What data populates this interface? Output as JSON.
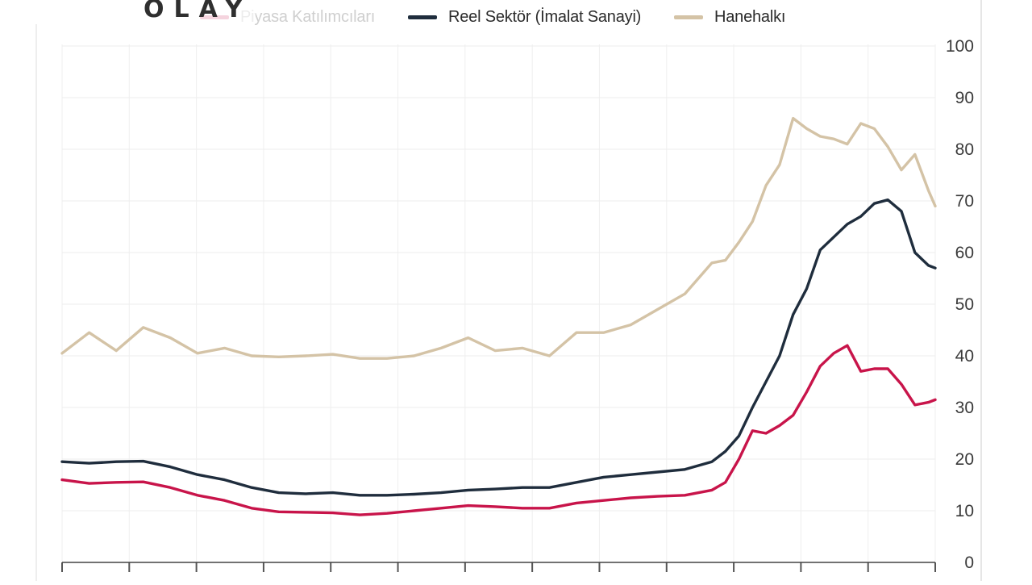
{
  "brand": {
    "logo_text": "OLAY"
  },
  "legend": [
    {
      "label": "Piyasa Katılımcıları",
      "color": "#c8144a"
    },
    {
      "label": "Reel Sektör (İmalat Sanayi)",
      "color": "#1f2d3d"
    },
    {
      "label": "Hanehalkı",
      "color": "#d4c3a6"
    }
  ],
  "chart_data": {
    "type": "line",
    "title": "",
    "xlabel": "",
    "ylabel": "",
    "ylim": [
      0,
      100
    ],
    "y_ticks": [
      0,
      10,
      20,
      30,
      40,
      50,
      60,
      70,
      80,
      90,
      100
    ],
    "y_axis_side": "right",
    "grid": true,
    "legend_position": "top",
    "x_index_range": [
      0,
      129
    ],
    "series": [
      {
        "name": "Piyasa Katılımcıları",
        "color": "#c8144a",
        "x": [
          0,
          4,
          8,
          12,
          16,
          20,
          24,
          28,
          32,
          36,
          40,
          44,
          48,
          52,
          56,
          60,
          64,
          68,
          72,
          76,
          80,
          84,
          88,
          92,
          96,
          98,
          100,
          102,
          104,
          106,
          108,
          110,
          112,
          114,
          116,
          118,
          120,
          122,
          124,
          126,
          128,
          129
        ],
        "values": [
          16,
          15.3,
          15.5,
          15.6,
          14.5,
          13,
          12,
          10.5,
          9.8,
          9.7,
          9.6,
          9.2,
          9.5,
          10,
          10.5,
          11,
          10.8,
          10.5,
          10.5,
          11.5,
          12,
          12.5,
          12.8,
          13,
          14,
          15.5,
          20,
          25.5,
          25,
          26.5,
          28.5,
          33,
          38,
          40.5,
          42,
          37,
          37.5,
          37.5,
          34.5,
          30.5,
          31,
          31.5
        ]
      },
      {
        "name": "Reel Sektör (İmalat Sanayi)",
        "color": "#1f2d3d",
        "x": [
          0,
          4,
          8,
          12,
          16,
          20,
          24,
          28,
          32,
          36,
          40,
          44,
          48,
          52,
          56,
          60,
          64,
          68,
          72,
          76,
          80,
          84,
          88,
          92,
          96,
          98,
          100,
          102,
          104,
          106,
          108,
          110,
          112,
          114,
          116,
          118,
          120,
          122,
          124,
          126,
          128,
          129
        ],
        "values": [
          19.5,
          19.2,
          19.5,
          19.6,
          18.5,
          17,
          16,
          14.5,
          13.5,
          13.3,
          13.5,
          13,
          13,
          13.2,
          13.5,
          14,
          14.2,
          14.5,
          14.5,
          15.5,
          16.5,
          17,
          17.5,
          18,
          19.5,
          21.5,
          24.5,
          30,
          35,
          40,
          48,
          53,
          60.5,
          63,
          65.5,
          67,
          69.5,
          70.2,
          68,
          60,
          57.5,
          57
        ]
      },
      {
        "name": "Hanehalkı",
        "color": "#d4c3a6",
        "x": [
          0,
          4,
          8,
          12,
          16,
          20,
          24,
          28,
          32,
          36,
          40,
          44,
          48,
          52,
          56,
          60,
          64,
          68,
          72,
          76,
          80,
          84,
          88,
          92,
          96,
          98,
          100,
          102,
          104,
          106,
          108,
          110,
          112,
          114,
          116,
          118,
          120,
          122,
          124,
          126,
          128,
          129
        ],
        "values": [
          40.5,
          44.5,
          41,
          45.5,
          43.5,
          40.5,
          41.5,
          40,
          39.8,
          40,
          40.3,
          39.5,
          39.5,
          40,
          41.5,
          43.5,
          41,
          41.5,
          40,
          44.5,
          44.5,
          46,
          49,
          52,
          58,
          58.5,
          62,
          66,
          73,
          77,
          86,
          84,
          82.5,
          82,
          81,
          85,
          84,
          80.5,
          76,
          79,
          72,
          69
        ]
      }
    ],
    "note": "x values are sequential observation indices (x-axis tick labels are not legible in the image)"
  }
}
